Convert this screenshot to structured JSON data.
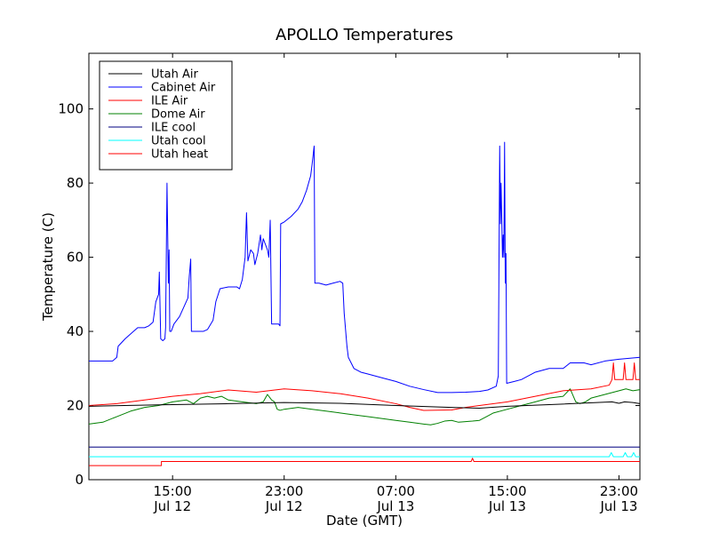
{
  "chart_data": {
    "type": "line",
    "title": "APOLLO Temperatures",
    "xlabel": "Date (GMT)",
    "ylabel": "Temperature (C)",
    "xlim": [
      0,
      39.5
    ],
    "ylim": [
      0,
      115
    ],
    "x_unit": "hours since Jul 12 09:00 GMT",
    "y_ticks": [
      0,
      20,
      40,
      60,
      80,
      100
    ],
    "x_ticks": [
      {
        "x": 6,
        "line1": "15:00",
        "line2": "Jul 12"
      },
      {
        "x": 14,
        "line1": "23:00",
        "line2": "Jul 12"
      },
      {
        "x": 22,
        "line1": "07:00",
        "line2": "Jul 13"
      },
      {
        "x": 30,
        "line1": "15:00",
        "line2": "Jul 13"
      },
      {
        "x": 38,
        "line1": "23:00",
        "line2": "Jul 13"
      }
    ],
    "legend_position": "top-left",
    "series": [
      {
        "name": "Utah Air",
        "color": "#000000",
        "points": [
          [
            0,
            19.8
          ],
          [
            5,
            20.2
          ],
          [
            10,
            20.5
          ],
          [
            14,
            20.8
          ],
          [
            18,
            20.6
          ],
          [
            22,
            20.0
          ],
          [
            26,
            19.5
          ],
          [
            28,
            19.3
          ],
          [
            30,
            19.8
          ],
          [
            34,
            20.4
          ],
          [
            37.5,
            21
          ],
          [
            38,
            20.6
          ],
          [
            38.4,
            21
          ],
          [
            39,
            20.8
          ],
          [
            39.5,
            20.5
          ]
        ]
      },
      {
        "name": "Cabinet Air",
        "color": "#0000ff",
        "points": [
          [
            0,
            32
          ],
          [
            1.7,
            32
          ],
          [
            2.0,
            33
          ],
          [
            2.1,
            36
          ],
          [
            2.6,
            38
          ],
          [
            3.2,
            40
          ],
          [
            3.5,
            41
          ],
          [
            4.0,
            41
          ],
          [
            4.3,
            41.5
          ],
          [
            4.6,
            42.5
          ],
          [
            4.8,
            48
          ],
          [
            5.0,
            50
          ],
          [
            5.05,
            56
          ],
          [
            5.15,
            38
          ],
          [
            5.3,
            37.5
          ],
          [
            5.45,
            38
          ],
          [
            5.5,
            41
          ],
          [
            5.6,
            80
          ],
          [
            5.7,
            53
          ],
          [
            5.75,
            62
          ],
          [
            5.8,
            40
          ],
          [
            5.9,
            40
          ],
          [
            6.1,
            42
          ],
          [
            6.5,
            44
          ],
          [
            7.1,
            49
          ],
          [
            7.2,
            55
          ],
          [
            7.3,
            59.5
          ],
          [
            7.35,
            40
          ],
          [
            7.6,
            40
          ],
          [
            8.2,
            40
          ],
          [
            8.5,
            40.5
          ],
          [
            8.9,
            43
          ],
          [
            9.1,
            48
          ],
          [
            9.4,
            51.5
          ],
          [
            10.0,
            52
          ],
          [
            10.6,
            52
          ],
          [
            10.8,
            51.5
          ],
          [
            11.0,
            54
          ],
          [
            11.2,
            60
          ],
          [
            11.3,
            72
          ],
          [
            11.4,
            59
          ],
          [
            11.6,
            62
          ],
          [
            11.8,
            61
          ],
          [
            11.9,
            58
          ],
          [
            12.1,
            61
          ],
          [
            12.3,
            66
          ],
          [
            12.4,
            62
          ],
          [
            12.5,
            65
          ],
          [
            12.6,
            64
          ],
          [
            12.8,
            62
          ],
          [
            12.9,
            60
          ],
          [
            13.0,
            70
          ],
          [
            13.1,
            42
          ],
          [
            13.3,
            42
          ],
          [
            13.6,
            42
          ],
          [
            13.7,
            41.5
          ],
          [
            13.75,
            69
          ],
          [
            14.0,
            69.5
          ],
          [
            14.5,
            71
          ],
          [
            15.0,
            73
          ],
          [
            15.3,
            75
          ],
          [
            15.6,
            78
          ],
          [
            15.9,
            82
          ],
          [
            16.0,
            85
          ],
          [
            16.15,
            90
          ],
          [
            16.2,
            53
          ],
          [
            16.5,
            53
          ],
          [
            17.0,
            52.5
          ],
          [
            17.5,
            53
          ],
          [
            18.0,
            53.5
          ],
          [
            18.2,
            53
          ],
          [
            18.3,
            45
          ],
          [
            18.5,
            36
          ],
          [
            18.6,
            33
          ],
          [
            19.0,
            30
          ],
          [
            19.5,
            29
          ],
          [
            20.0,
            28.5
          ],
          [
            21.0,
            27.5
          ],
          [
            22.0,
            26.5
          ],
          [
            23.0,
            25.2
          ],
          [
            24.0,
            24.3
          ],
          [
            25.0,
            23.5
          ],
          [
            26.0,
            23.5
          ],
          [
            27.0,
            23.6
          ],
          [
            28.0,
            23.8
          ],
          [
            28.6,
            24.2
          ],
          [
            29.2,
            25.2
          ],
          [
            29.35,
            28
          ],
          [
            29.45,
            90
          ],
          [
            29.5,
            69
          ],
          [
            29.55,
            80
          ],
          [
            29.65,
            60
          ],
          [
            29.7,
            66
          ],
          [
            29.75,
            60
          ],
          [
            29.8,
            91
          ],
          [
            29.85,
            53
          ],
          [
            29.9,
            61
          ],
          [
            29.95,
            26
          ],
          [
            30.5,
            26.5
          ],
          [
            31.0,
            27
          ],
          [
            32.0,
            29
          ],
          [
            33.0,
            30
          ],
          [
            34.0,
            30
          ],
          [
            34.5,
            31.5
          ],
          [
            35.5,
            31.5
          ],
          [
            36.0,
            31
          ],
          [
            37.0,
            32
          ],
          [
            38.0,
            32.5
          ],
          [
            39.5,
            33
          ]
        ]
      },
      {
        "name": "ILE Air",
        "color": "#ff0000",
        "points": [
          [
            0,
            20
          ],
          [
            2,
            20.5
          ],
          [
            4,
            21.5
          ],
          [
            6,
            22.5
          ],
          [
            8,
            23.2
          ],
          [
            10,
            24.2
          ],
          [
            12,
            23.6
          ],
          [
            14,
            24.5
          ],
          [
            16,
            24
          ],
          [
            18,
            23.2
          ],
          [
            20,
            22
          ],
          [
            22,
            20.5
          ],
          [
            23,
            19.5
          ],
          [
            24,
            18.7
          ],
          [
            26,
            18.8
          ],
          [
            27,
            19.5
          ],
          [
            28,
            20
          ],
          [
            30,
            21
          ],
          [
            32,
            22.5
          ],
          [
            34,
            24
          ],
          [
            36,
            24.5
          ],
          [
            37.3,
            25.5
          ],
          [
            37.5,
            27
          ],
          [
            37.6,
            31.5
          ],
          [
            37.7,
            27
          ],
          [
            38.3,
            27
          ],
          [
            38.4,
            31.5
          ],
          [
            38.5,
            27
          ],
          [
            39.0,
            27
          ],
          [
            39.1,
            31.5
          ],
          [
            39.2,
            27
          ],
          [
            39.5,
            27
          ]
        ]
      },
      {
        "name": "Dome Air",
        "color": "#008000",
        "points": [
          [
            0,
            15
          ],
          [
            1,
            15.5
          ],
          [
            2,
            17
          ],
          [
            3,
            18.5
          ],
          [
            4,
            19.5
          ],
          [
            5,
            20
          ],
          [
            6,
            21
          ],
          [
            7,
            21.5
          ],
          [
            7.5,
            20.5
          ],
          [
            8,
            22
          ],
          [
            8.5,
            22.5
          ],
          [
            9,
            22
          ],
          [
            9.5,
            22.5
          ],
          [
            10,
            21.5
          ],
          [
            11,
            21
          ],
          [
            12,
            20.5
          ],
          [
            12.5,
            21
          ],
          [
            12.8,
            23
          ],
          [
            13.0,
            22
          ],
          [
            13.1,
            21.5
          ],
          [
            13.3,
            21
          ],
          [
            13.5,
            19
          ],
          [
            13.7,
            18.7
          ],
          [
            14,
            19
          ],
          [
            15,
            19.5
          ],
          [
            16,
            19
          ],
          [
            17,
            18.5
          ],
          [
            18,
            18
          ],
          [
            19,
            17.5
          ],
          [
            20,
            17
          ],
          [
            21,
            16.5
          ],
          [
            22,
            16
          ],
          [
            23,
            15.5
          ],
          [
            24,
            15
          ],
          [
            24.5,
            14.8
          ],
          [
            25,
            15.2
          ],
          [
            25.5,
            15.8
          ],
          [
            26,
            16
          ],
          [
            26.5,
            15.5
          ],
          [
            27.5,
            15.8
          ],
          [
            28,
            16
          ],
          [
            28.5,
            17
          ],
          [
            29,
            18
          ],
          [
            30,
            19
          ],
          [
            31,
            20
          ],
          [
            32,
            21
          ],
          [
            33,
            22
          ],
          [
            34,
            22.5
          ],
          [
            34.5,
            24.5
          ],
          [
            34.9,
            21
          ],
          [
            35.2,
            20.5
          ],
          [
            35.6,
            21
          ],
          [
            36,
            22
          ],
          [
            37,
            23
          ],
          [
            38,
            24
          ],
          [
            38.5,
            24.5
          ],
          [
            39,
            24
          ],
          [
            39.5,
            24.3
          ]
        ]
      },
      {
        "name": "ILE cool",
        "color": "#000080",
        "points": [
          [
            0,
            8.8
          ],
          [
            39.5,
            8.8
          ]
        ]
      },
      {
        "name": "Utah cool",
        "color": "#00ffff",
        "points": [
          [
            0,
            6.2
          ],
          [
            37.3,
            6.2
          ],
          [
            37.45,
            7.3
          ],
          [
            37.6,
            6.2
          ],
          [
            38.3,
            6.2
          ],
          [
            38.45,
            7.3
          ],
          [
            38.6,
            6.2
          ],
          [
            38.9,
            6.2
          ],
          [
            39.05,
            7.3
          ],
          [
            39.2,
            6.2
          ],
          [
            39.5,
            6.2
          ]
        ]
      },
      {
        "name": "Utah heat",
        "color": "#ff0000",
        "points": [
          [
            0,
            3.8
          ],
          [
            5.2,
            3.8
          ],
          [
            5.2,
            4.9
          ],
          [
            27.4,
            4.9
          ],
          [
            27.5,
            5.8
          ],
          [
            27.6,
            4.9
          ],
          [
            39.5,
            4.9
          ]
        ]
      }
    ]
  }
}
